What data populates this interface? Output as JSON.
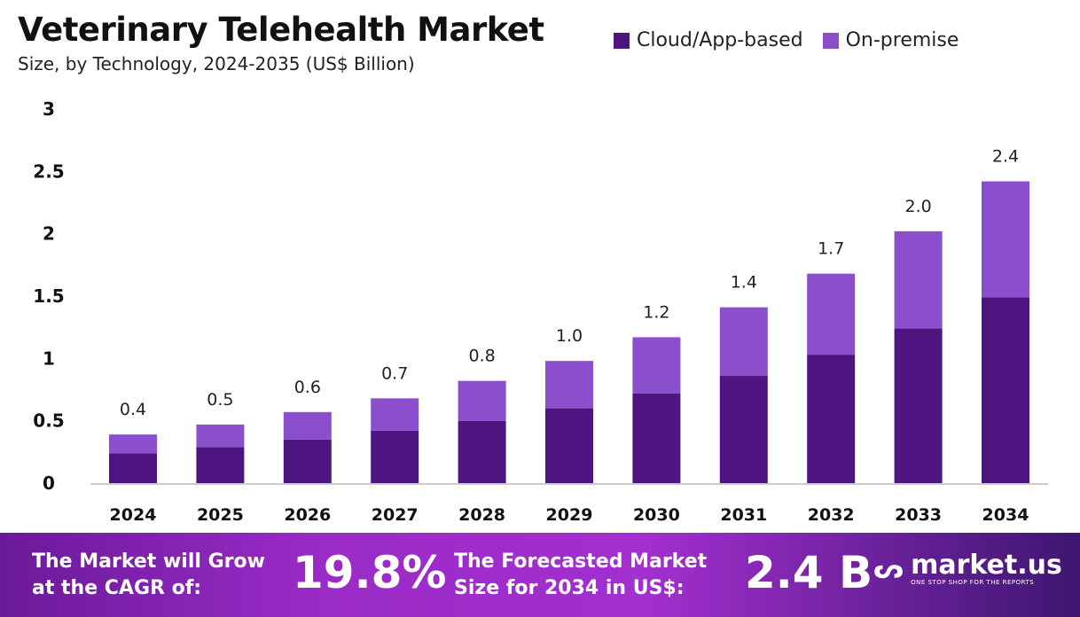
{
  "chart_data": {
    "type": "bar",
    "stacked": true,
    "title": "Veterinary Telehealth Market",
    "subtitle": "Size, by Technology, 2024-2035 (US$ Billion)",
    "categories": [
      "2024",
      "2025",
      "2026",
      "2027",
      "2028",
      "2029",
      "2030",
      "2031",
      "2032",
      "2033",
      "2034"
    ],
    "series": [
      {
        "name": "Cloud/App-based",
        "color": "#4e1580",
        "values": [
          0.24,
          0.29,
          0.35,
          0.42,
          0.5,
          0.6,
          0.72,
          0.86,
          1.03,
          1.24,
          1.49
        ]
      },
      {
        "name": "On-premise",
        "color": "#8b4fce",
        "values": [
          0.15,
          0.18,
          0.22,
          0.26,
          0.32,
          0.38,
          0.45,
          0.55,
          0.65,
          0.78,
          0.93
        ]
      }
    ],
    "totals_labels": [
      "0.4",
      "0.5",
      "0.6",
      "0.7",
      "0.8",
      "1.0",
      "1.2",
      "1.4",
      "1.7",
      "2.0",
      "2.4"
    ],
    "yticks": [
      "0",
      "0.5",
      "1",
      "1.5",
      "2",
      "2.5",
      "3"
    ],
    "ylim": [
      0,
      3
    ],
    "xlabel": "",
    "ylabel": "",
    "grid": false,
    "legend_position": "top-right"
  },
  "footer": {
    "cagr_text_1": "The Market will Grow",
    "cagr_text_2": "at the CAGR of:",
    "cagr_value": "19.8%",
    "forecast_text_1": "The Forecasted Market",
    "forecast_text_2": "Size for 2034 in US$:",
    "forecast_value": "2.4 B",
    "brand": "market.us",
    "brand_tagline": "ONE STOP SHOP FOR THE REPORTS"
  }
}
